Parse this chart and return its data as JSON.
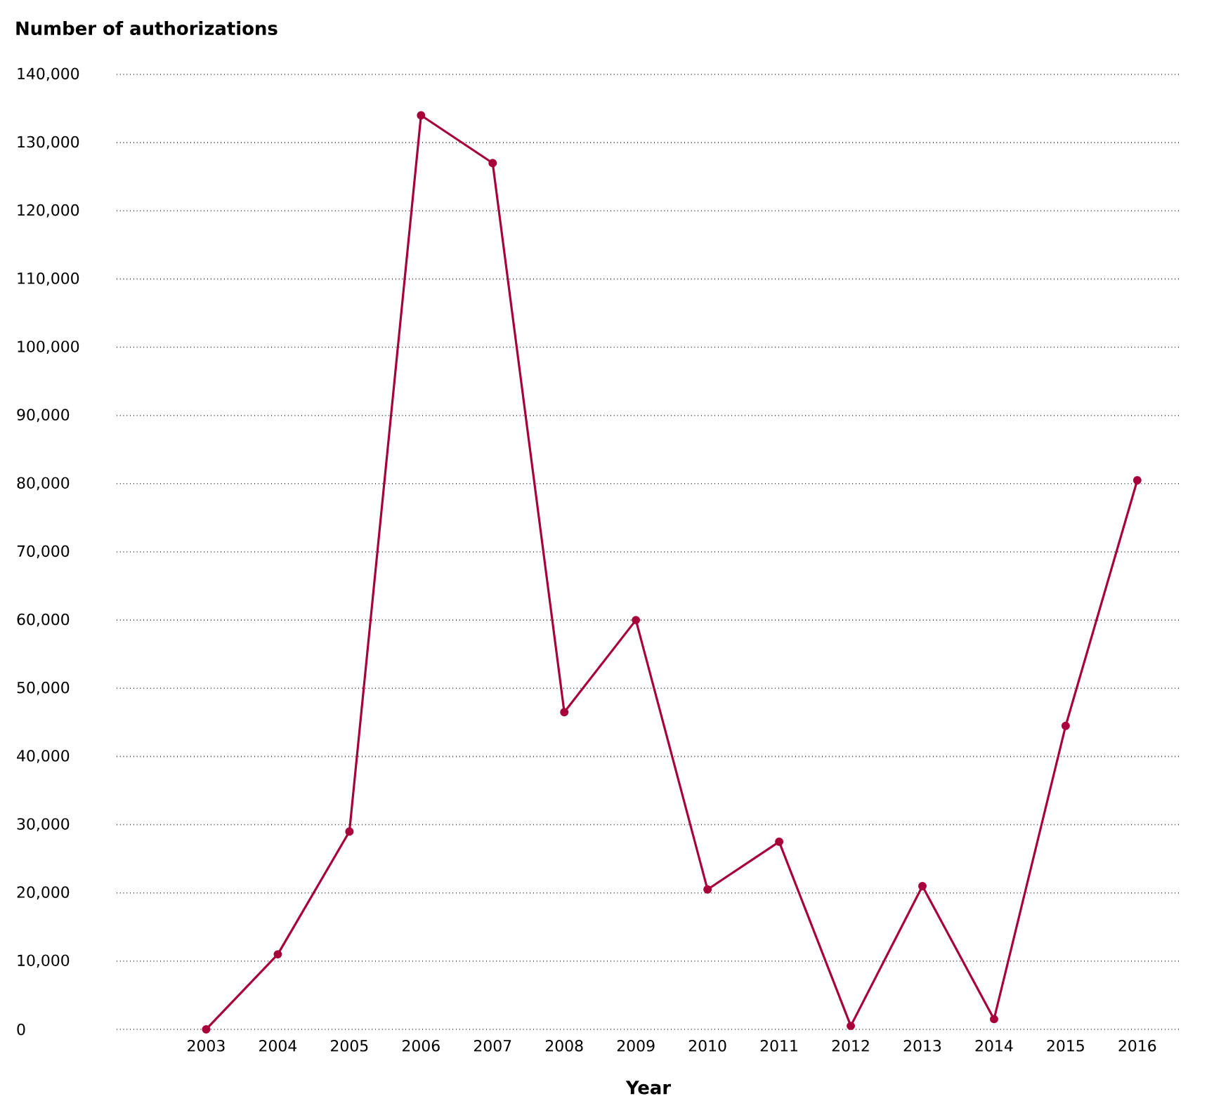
{
  "chart_data": {
    "type": "line",
    "title": "Number of authorizations",
    "xlabel": "Year",
    "categories": [
      "2003",
      "2004",
      "2005",
      "2006",
      "2007",
      "2008",
      "2009",
      "2010",
      "2011",
      "2012",
      "2013",
      "2014",
      "2015",
      "2016"
    ],
    "series": [
      {
        "color": "#a8003a",
        "values": [
          0,
          11000,
          29000,
          134000,
          127000,
          46500,
          60000,
          20500,
          27500,
          500,
          21000,
          1500,
          44500,
          80500
        ]
      }
    ],
    "ylim": [
      0,
      140000
    ],
    "yticks": [
      {
        "value": 0,
        "label": "0"
      },
      {
        "value": 10000,
        "label": "10,000"
      },
      {
        "value": 20000,
        "label": "20,000"
      },
      {
        "value": 30000,
        "label": "30,000"
      },
      {
        "value": 40000,
        "label": "40,000"
      },
      {
        "value": 50000,
        "label": "50,000"
      },
      {
        "value": 60000,
        "label": "60,000"
      },
      {
        "value": 70000,
        "label": "70,000"
      },
      {
        "value": 80000,
        "label": "80,000"
      },
      {
        "value": 90000,
        "label": "90,000"
      },
      {
        "value": 100000,
        "label": "100,000"
      },
      {
        "value": 110000,
        "label": "110,000"
      },
      {
        "value": 120000,
        "label": "120,000"
      },
      {
        "value": 130000,
        "label": "130,000"
      },
      {
        "value": 140000,
        "label": "140,000"
      }
    ],
    "grid": "y",
    "marker": "circle",
    "line_style": "solid"
  }
}
